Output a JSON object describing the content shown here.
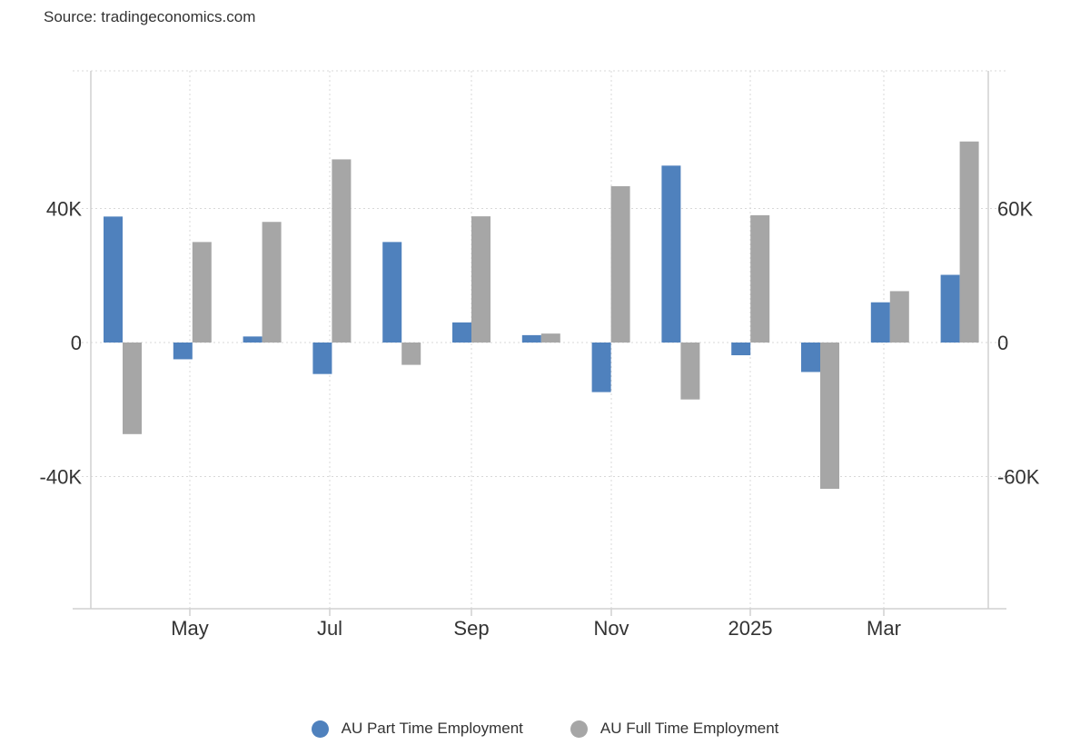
{
  "source": "Source: tradingeconomics.com",
  "chart_data": {
    "type": "bar",
    "categories": [
      "Apr 2024",
      "May 2024",
      "Jun 2024",
      "Jul 2024",
      "Aug 2024",
      "Sep 2024",
      "Oct 2024",
      "Nov 2024",
      "Dec 2024",
      "Jan 2025",
      "Feb 2025",
      "Mar 2025",
      "Apr 2025"
    ],
    "x_tick_labels": [
      "May",
      "Jul",
      "Sep",
      "Nov",
      "2025",
      "Mar"
    ],
    "series": [
      {
        "name": "AU Part Time Employment",
        "axis": "left",
        "color": "#4f81bd",
        "values": [
          37600,
          -5000,
          1800,
          -9400,
          30000,
          6000,
          2200,
          -14800,
          52800,
          -3800,
          -8800,
          12000,
          20200
        ]
      },
      {
        "name": "AU Full Time Employment",
        "axis": "right",
        "color": "#a6a6a6",
        "values": [
          -41000,
          45000,
          54000,
          82000,
          -10000,
          56500,
          4000,
          70000,
          -25500,
          57000,
          -65500,
          23000,
          90000
        ]
      }
    ],
    "left_axis": {
      "ylim": [
        -80000,
        80000
      ],
      "ticks": [
        40000,
        0,
        -40000
      ],
      "tick_labels": [
        "40K",
        "0",
        "-40K"
      ]
    },
    "right_axis": {
      "ylim": [
        -120000,
        120000
      ],
      "ticks": [
        60000,
        0,
        -60000
      ],
      "tick_labels": [
        "60K",
        "0",
        "-60K"
      ]
    },
    "grid": true,
    "legend_position": "bottom-center"
  }
}
